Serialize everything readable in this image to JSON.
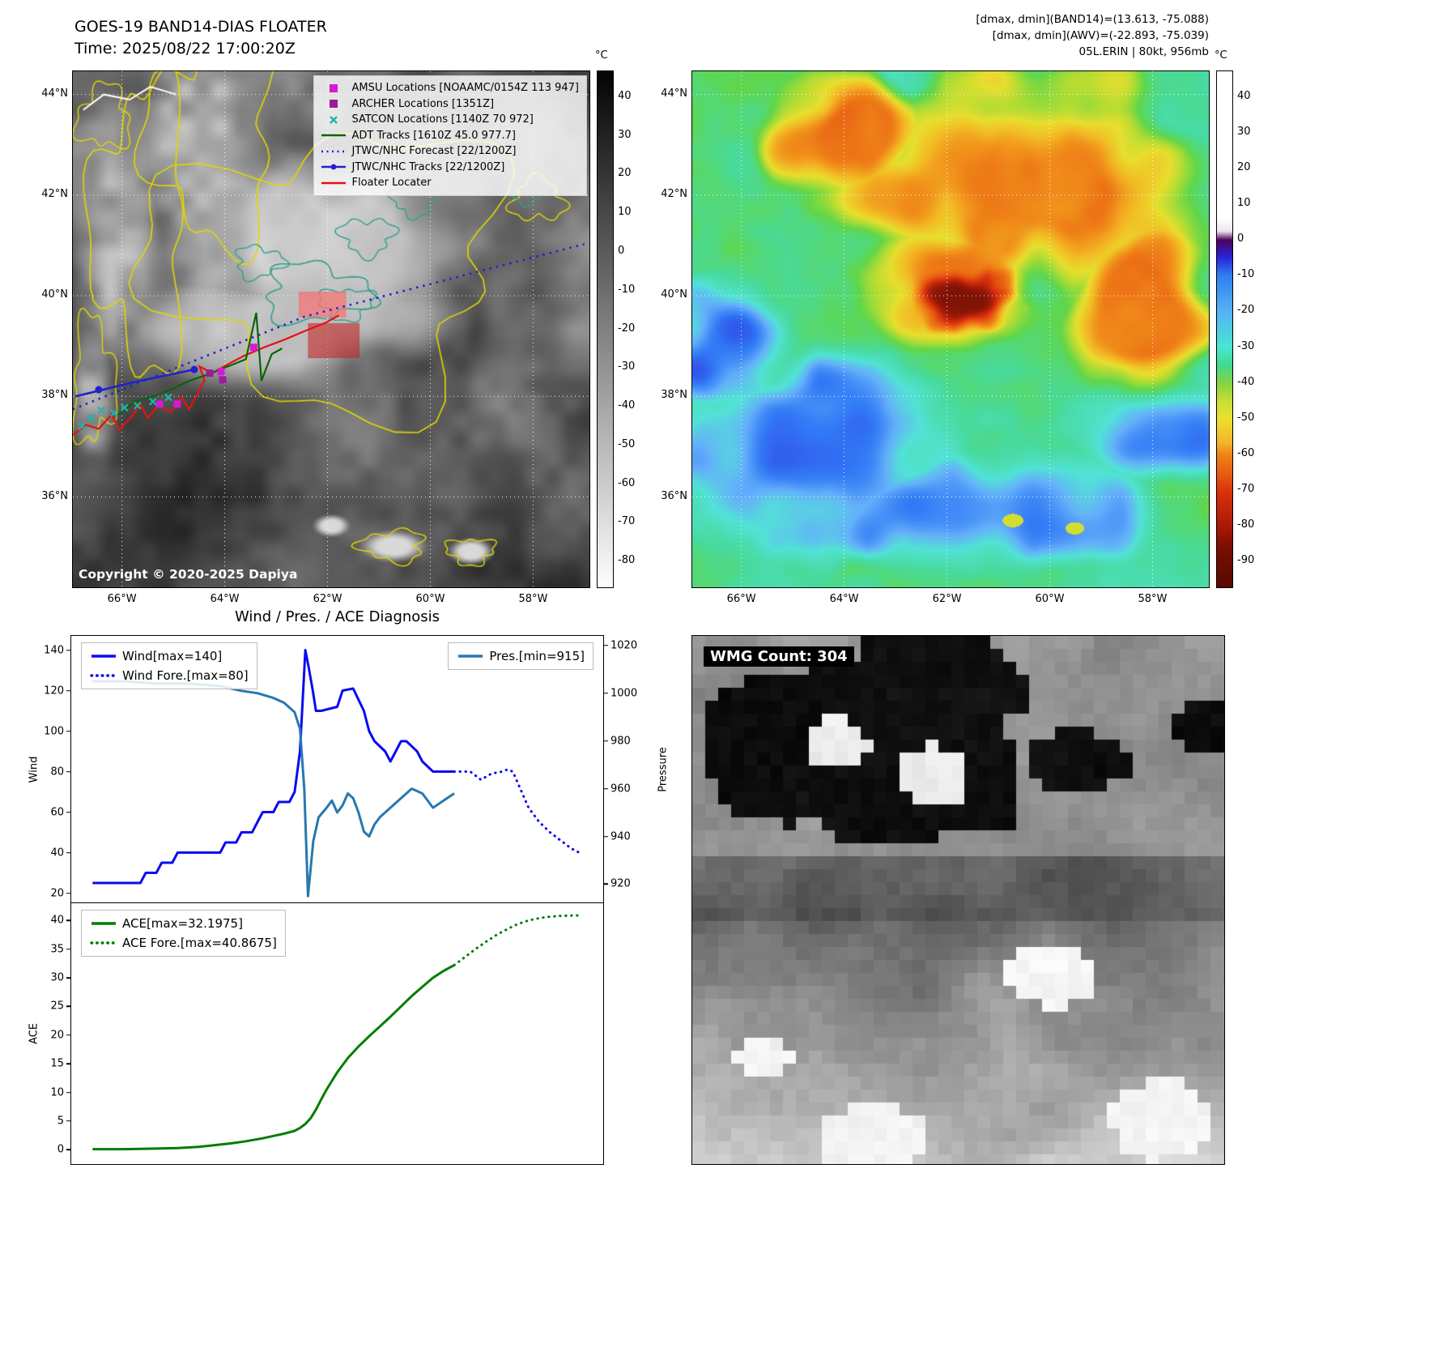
{
  "goes_panel": {
    "title": "GOES-19 BAND14-DIAS FLOATER",
    "subtitle": "Time: 2025/08/22 17:00:20Z",
    "copyright": "Copyright © 2020-2025 Dapiya",
    "colorbar_unit": "°C",
    "colorbar_ticks": [
      40,
      30,
      20,
      10,
      0,
      -10,
      -20,
      -30,
      -40,
      -50,
      -60,
      -70,
      -80
    ],
    "lat_ticks": [
      "44°N",
      "42°N",
      "40°N",
      "38°N",
      "36°N"
    ],
    "lon_ticks": [
      "66°W",
      "64°W",
      "62°W",
      "60°W",
      "58°W"
    ],
    "legend": [
      {
        "label": "AMSU Locations [NOAAMC/0154Z 113 947]",
        "marker": "square",
        "color": "#d619d6"
      },
      {
        "label": "ARCHER Locations [1351Z]",
        "marker": "square",
        "color": "#9b1b9b"
      },
      {
        "label": "SATCON Locations [1140Z 70 972]",
        "marker": "x",
        "color": "#20b2aa"
      },
      {
        "label": "ADT Tracks [1610Z 45.0 977.7]",
        "marker": "line",
        "color": "#0a640a"
      },
      {
        "label": "JTWC/NHC Forecast [22/1200Z]",
        "marker": "dotted",
        "color": "#2222cc"
      },
      {
        "label": "JTWC/NHC Tracks [22/1200Z]",
        "marker": "line-dot",
        "color": "#2222cc"
      },
      {
        "label": "Floater Locater",
        "marker": "line",
        "color": "#e81111"
      }
    ]
  },
  "awv_panel": {
    "header_lines": [
      "[dmax, dmin](BAND14)=(13.613, -75.088)",
      "[dmax, dmin](AWV)=(-22.893, -75.039)",
      "05L.ERIN | 80kt, 956mb"
    ],
    "colorbar_unit": "°C",
    "colorbar_ticks": [
      40,
      30,
      20,
      10,
      0,
      -10,
      -20,
      -30,
      -40,
      -50,
      -60,
      -70,
      -80,
      -90
    ],
    "lat_ticks": [
      "44°N",
      "42°N",
      "40°N",
      "38°N",
      "36°N"
    ],
    "lon_ticks": [
      "66°W",
      "64°W",
      "62°W",
      "60°W",
      "58°W"
    ]
  },
  "wmg_panel": {
    "label": "WMG Count: 304"
  },
  "chart_data": [
    {
      "id": "wind-pres",
      "type": "line",
      "title": "Wind / Pres. / ACE Diagnosis",
      "ylabel": "Wind",
      "y2label": "Pressure",
      "xlim": [
        0,
        100
      ],
      "ylim": [
        15,
        147
      ],
      "y2lim": [
        912,
        1024
      ],
      "yticks": [
        20,
        40,
        60,
        80,
        100,
        120,
        140
      ],
      "y2ticks": [
        920,
        940,
        960,
        980,
        1000,
        1020
      ],
      "grid": false,
      "legend_position": "upper left / upper right",
      "series": [
        {
          "name": "Wind[max=140]",
          "color": "#0b0bf0",
          "style": "solid",
          "axis": "y",
          "x": [
            4,
            13,
            14,
            16,
            17,
            19,
            20,
            22,
            28,
            29,
            31,
            32,
            34,
            35,
            36,
            38,
            39,
            41,
            42,
            43,
            44,
            44.6,
            45.4,
            46,
            47,
            50,
            51,
            53,
            55,
            56,
            57,
            59,
            60,
            61,
            62,
            63,
            65,
            66,
            68,
            72
          ],
          "values": [
            25,
            25,
            30,
            30,
            35,
            35,
            40,
            40,
            40,
            45,
            45,
            50,
            50,
            55,
            60,
            60,
            65,
            65,
            70,
            90,
            140,
            132,
            120,
            110,
            110,
            112,
            120,
            121,
            110,
            100,
            95,
            90,
            85,
            90,
            95,
            95,
            90,
            85,
            80,
            80
          ]
        },
        {
          "name": "Wind Fore.[max=80]",
          "color": "#0b0bf0",
          "style": "dotted",
          "axis": "y",
          "x": [
            72,
            75,
            77,
            79,
            81,
            82,
            83,
            84,
            86,
            88,
            90,
            92,
            94,
            95.5
          ],
          "values": [
            80,
            80,
            76,
            79,
            80,
            81,
            80,
            74,
            62,
            55,
            50,
            46,
            42,
            40
          ]
        },
        {
          "name": "Pres.[min=915]",
          "color": "#2778ae",
          "style": "solid",
          "axis": "y2",
          "x": [
            4,
            10,
            16,
            22,
            28,
            32,
            35,
            38,
            40,
            42,
            43,
            43.8,
            44.5,
            45.5,
            46.5,
            48,
            49,
            50,
            51,
            52,
            53,
            54,
            55,
            56,
            57,
            58,
            60,
            62,
            64,
            66,
            68,
            70,
            72
          ],
          "values": [
            1005,
            1005,
            1004,
            1004,
            1003,
            1001,
            1000,
            998,
            996,
            992,
            985,
            960,
            915,
            938,
            948,
            952,
            955,
            950,
            953,
            958,
            956,
            950,
            942,
            940,
            945,
            948,
            952,
            956,
            960,
            958,
            952,
            955,
            958
          ]
        }
      ]
    },
    {
      "id": "ace",
      "type": "line",
      "title": "",
      "ylabel": "ACE",
      "xlim": [
        0,
        100
      ],
      "ylim": [
        -2.5,
        43
      ],
      "yticks": [
        0,
        5,
        10,
        15,
        20,
        25,
        30,
        35,
        40
      ],
      "grid": false,
      "legend_position": "upper left",
      "series": [
        {
          "name": "ACE[max=32.1975]",
          "color": "#007d00",
          "style": "solid",
          "axis": "y",
          "x": [
            4,
            10,
            16,
            20,
            24,
            27,
            30,
            33,
            36,
            38,
            40,
            42,
            43,
            44,
            45,
            46,
            47,
            48,
            49,
            50,
            52,
            54,
            56,
            58,
            60,
            62,
            64,
            66,
            68,
            70,
            72
          ],
          "values": [
            0.1,
            0.1,
            0.2,
            0.3,
            0.5,
            0.8,
            1.1,
            1.5,
            2.0,
            2.4,
            2.8,
            3.3,
            3.8,
            4.5,
            5.5,
            7.0,
            8.8,
            10.5,
            12.0,
            13.5,
            16.0,
            18.0,
            19.8,
            21.5,
            23.2,
            25.0,
            26.8,
            28.4,
            30.0,
            31.2,
            32.2
          ]
        },
        {
          "name": "ACE Fore.[max=40.8675]",
          "color": "#007d00",
          "style": "dotted",
          "axis": "y",
          "x": [
            72,
            74,
            76,
            78,
            80,
            82,
            84,
            86,
            88,
            90,
            92,
            94,
            96
          ],
          "values": [
            32.2,
            33.6,
            35.0,
            36.3,
            37.5,
            38.5,
            39.4,
            40.0,
            40.4,
            40.65,
            40.8,
            40.85,
            40.87
          ]
        }
      ]
    }
  ]
}
